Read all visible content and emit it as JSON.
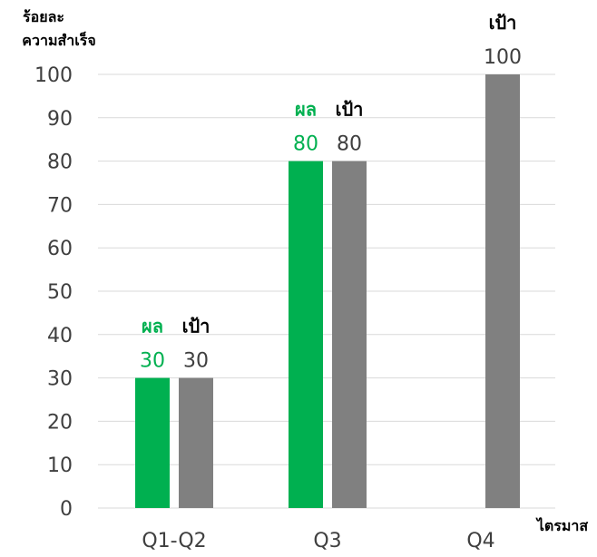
{
  "chart_data": {
    "type": "bar",
    "categories": [
      "Q1-Q2",
      "Q3",
      "Q4"
    ],
    "series": [
      {
        "name": "ผล",
        "values": [
          30,
          80,
          null
        ],
        "color": "#00b050"
      },
      {
        "name": "เป้า",
        "values": [
          30,
          80,
          100
        ],
        "color": "#808080"
      }
    ],
    "ylabel": [
      "ร้อยละ",
      "ความสำเร็จ"
    ],
    "xlabel": "ไตรมาส",
    "ylim": [
      0,
      100
    ],
    "yticks": [
      0,
      10,
      20,
      30,
      40,
      50,
      60,
      70,
      80,
      90,
      100
    ],
    "grid": true,
    "legend": "none",
    "colors": {
      "grid": "#d9d9d9",
      "text": "#3f3f3f"
    }
  }
}
